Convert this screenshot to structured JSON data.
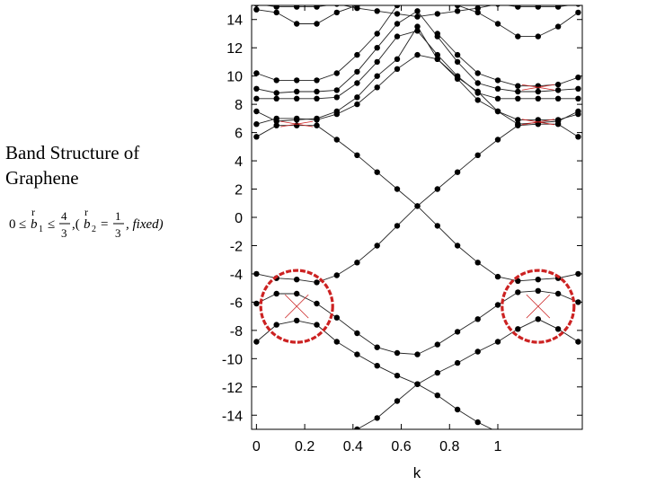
{
  "caption": {
    "line1": "Band Structure of",
    "line2": "Graphene"
  },
  "formula": {
    "text": "0 ≤ b1 ≤ 4/3, (b2 = 1/3, fixed)",
    "parts": {
      "zero": "0",
      "le1": "≤",
      "b": "b",
      "sub1": "1",
      "le2": "≤",
      "n1": "4",
      "d1": "3",
      "comma_paren": ",(",
      "sub2": "2",
      "eq": "=",
      "n2": "1",
      "d2": "3",
      "fixed": ", fixed)",
      "r": "r"
    }
  },
  "chart_data": {
    "type": "line",
    "xlabel": "k",
    "xlim": [
      -0.02,
      1.35
    ],
    "ylim": [
      -15,
      15
    ],
    "xticks": [
      0,
      0.2,
      0.4,
      0.6,
      0.8,
      1
    ],
    "yticks": [
      -14,
      -12,
      -10,
      -8,
      -6,
      -4,
      -2,
      0,
      2,
      4,
      6,
      8,
      10,
      12,
      14
    ],
    "grid": false,
    "x": [
      0,
      0.083,
      0.167,
      0.25,
      0.333,
      0.417,
      0.5,
      0.583,
      0.667,
      0.75,
      0.833,
      0.917,
      1.0,
      1.083,
      1.167,
      1.25,
      1.333
    ],
    "series": [
      {
        "values": [
          -8.8,
          -7.6,
          -7.3,
          -7.6,
          -8.8,
          -9.7,
          -10.5,
          -11.2,
          -11.8,
          -12.6,
          -13.6,
          -14.5,
          -15.2,
          null,
          null,
          null,
          null
        ]
      },
      {
        "values": [
          null,
          null,
          null,
          null,
          null,
          -15.0,
          -14.2,
          -13.0,
          -11.8,
          -11.0,
          -10.3,
          -9.5,
          -8.8,
          -7.9,
          -7.2,
          -7.9,
          -8.8
        ]
      },
      {
        "values": [
          -6.1,
          -5.4,
          -5.4,
          -6.1,
          -7.1,
          -8.2,
          -9.2,
          -9.6,
          -9.7,
          -9.0,
          -8.1,
          -7.2,
          -6.2,
          -5.3,
          -5.2,
          -5.4,
          -6.0
        ]
      },
      {
        "values": [
          -4.0,
          -4.3,
          -4.4,
          -4.6,
          -4.1,
          -3.2,
          -2.0,
          -0.6,
          0.8,
          2.0,
          3.2,
          4.4,
          5.5,
          6.5,
          6.6,
          6.6,
          5.7
        ]
      },
      {
        "values": [
          5.7,
          6.5,
          6.5,
          6.5,
          5.5,
          4.4,
          3.2,
          2.0,
          0.8,
          -0.6,
          -2.0,
          -3.2,
          -4.2,
          -4.5,
          -4.4,
          -4.3,
          -4.0
        ]
      },
      {
        "values": [
          6.6,
          7.0,
          7.0,
          6.9,
          7.3,
          8.0,
          9.2,
          10.5,
          11.5,
          11.2,
          9.9,
          8.9,
          7.5,
          6.9,
          6.9,
          6.9,
          7.3
        ]
      },
      {
        "values": [
          7.5,
          6.8,
          6.9,
          7.0,
          7.5,
          8.5,
          10.0,
          11.2,
          13.5,
          11.2,
          9.8,
          8.3,
          7.5,
          6.6,
          6.7,
          6.8,
          7.5
        ]
      },
      {
        "values": [
          8.4,
          8.4,
          8.4,
          8.4,
          8.5,
          9.5,
          11.0,
          12.8,
          13.2,
          11.5,
          10.0,
          8.8,
          8.4,
          8.4,
          8.4,
          8.4,
          8.4
        ]
      },
      {
        "values": [
          9.1,
          8.8,
          8.9,
          8.9,
          9.0,
          10.3,
          12.0,
          13.7,
          14.6,
          12.8,
          11.0,
          9.5,
          9.1,
          8.9,
          8.9,
          9.0,
          9.1
        ]
      },
      {
        "values": [
          10.2,
          9.7,
          9.7,
          9.7,
          10.2,
          11.5,
          13.0,
          15.0,
          null,
          13.0,
          11.5,
          10.2,
          9.7,
          9.3,
          9.3,
          9.4,
          9.9
        ]
      },
      {
        "values": [
          14.7,
          14.5,
          13.7,
          13.7,
          14.5,
          15.0,
          null,
          null,
          null,
          null,
          15.0,
          14.5,
          13.7,
          12.8,
          12.8,
          13.5,
          14.5
        ]
      },
      {
        "values": [
          15.1,
          14.9,
          14.9,
          14.9,
          15.1,
          14.8,
          14.6,
          14.4,
          14.2,
          14.4,
          14.6,
          14.8,
          15.1,
          14.9,
          14.9,
          14.9,
          15.1
        ]
      }
    ],
    "annotations": [
      {
        "type": "circle",
        "x": 0.167,
        "y": -6.3,
        "color": "#cc2222"
      },
      {
        "type": "circle",
        "x": 1.167,
        "y": -6.3,
        "color": "#cc2222"
      }
    ],
    "marker_color": "#000000",
    "line_color": "#222222",
    "highlight_color": "#cc2222"
  }
}
